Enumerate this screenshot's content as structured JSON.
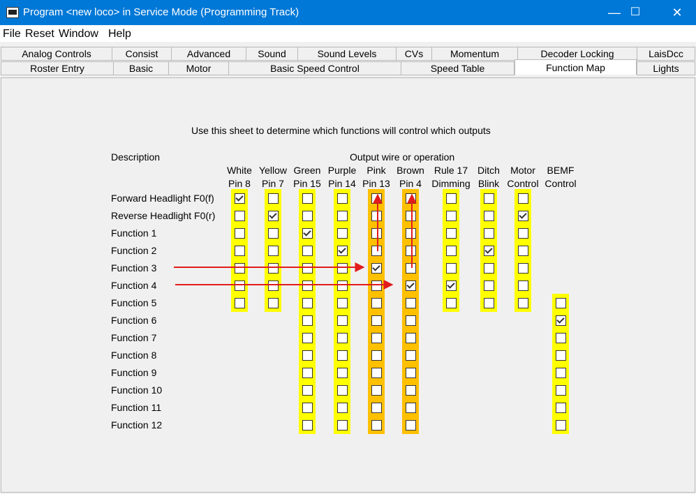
{
  "window": {
    "title": "Program <new loco> in Service Mode (Programming Track)",
    "minimize": "—",
    "maximize": "☐",
    "close": "✕"
  },
  "menu": [
    "File",
    "Reset",
    "Window",
    "Help"
  ],
  "tabs_row1": [
    "Analog Controls",
    "Consist",
    "Advanced",
    "Sound",
    "Sound Levels",
    "CVs",
    "Momentum",
    "Decoder Locking",
    "LaisDcc"
  ],
  "tabs_row2": [
    "Roster Entry",
    "Basic",
    "Motor",
    "Basic Speed Control",
    "Speed Table",
    "Function Map",
    "Lights"
  ],
  "active_tab": "Function Map",
  "sheet": {
    "instruction": "Use this sheet to determine which functions will control which outputs",
    "description_header": "Description",
    "output_header": "Output wire or operation",
    "columns": [
      {
        "line1": "White",
        "line2": "Pin 8",
        "highlight": "yellow",
        "rows": 7
      },
      {
        "line1": "Yellow",
        "line2": "Pin 7",
        "highlight": "yellow",
        "rows": 7
      },
      {
        "line1": "Green",
        "line2": "Pin 15",
        "highlight": "yellow",
        "rows": 14
      },
      {
        "line1": "Purple",
        "line2": "Pin 14",
        "highlight": "yellow",
        "rows": 14
      },
      {
        "line1": "Pink",
        "line2": "Pin 13",
        "highlight": "orange",
        "rows": 14
      },
      {
        "line1": "Brown",
        "line2": "Pin 4",
        "highlight": "orange",
        "rows": 14
      },
      {
        "line1": "Rule 17",
        "line2": "Dimming",
        "highlight": "yellow",
        "rows": 7
      },
      {
        "line1": "Ditch",
        "line2": "Blink",
        "highlight": "yellow",
        "rows": 7
      },
      {
        "line1": "Motor",
        "line2": "Control",
        "highlight": "yellow",
        "rows": 7
      },
      {
        "line1": "BEMF",
        "line2": "Control",
        "highlight": "yellow",
        "rows": 8
      }
    ],
    "rows": [
      "Forward Headlight F0(f)",
      "Reverse Headlight F0(r)",
      "Function 1",
      "Function 2",
      "Function 3",
      "Function 4",
      "Function 5",
      "Function 6",
      "Function 7",
      "Function 8",
      "Function 9",
      "Function 10",
      "Function 11",
      "Function 12"
    ],
    "checked": [
      [
        0,
        0
      ],
      [
        1,
        1
      ],
      [
        2,
        2
      ],
      [
        3,
        3
      ],
      [
        3,
        7
      ],
      [
        4,
        4
      ],
      [
        5,
        5
      ],
      [
        5,
        6
      ],
      [
        1,
        8
      ],
      [
        7,
        9
      ]
    ],
    "annotation_color": "#e21b1b"
  }
}
